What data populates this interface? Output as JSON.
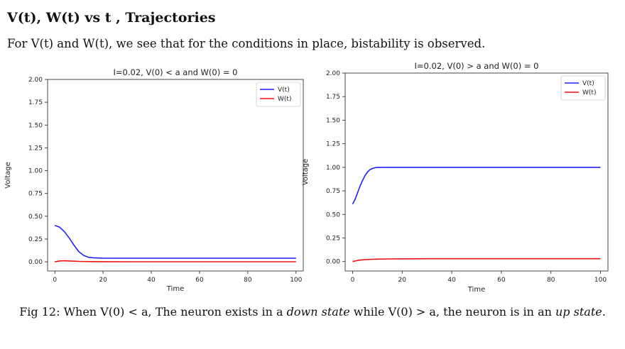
{
  "page": {
    "heading": "V(t), W(t) vs t , Trajectories",
    "intro": "For V(t) and W(t), we see that for the conditions in place, bistability is observed.",
    "caption": {
      "part1": "Fig 12: When V(0) <  a, The neuron exists in a ",
      "em1": "down state",
      "part2": " while V(0) > a, the neuron is in an ",
      "em2": "up state."
    }
  },
  "chart_data": [
    {
      "type": "line",
      "title": "I=0.02, V(0) < a and W(0) = 0",
      "xlabel": "Time",
      "ylabel": "Voltage",
      "xlim": [
        -3,
        103
      ],
      "ylim": [
        -0.1,
        2.0
      ],
      "xticks": [
        0,
        20,
        40,
        60,
        80,
        100
      ],
      "yticks": [
        "0.00",
        "0.25",
        "0.50",
        "0.75",
        "1.00",
        "1.25",
        "1.50",
        "1.75",
        "2.00"
      ],
      "grid": false,
      "legend": "top-right",
      "series": [
        {
          "name": "V(t)",
          "color": "#1f1fff",
          "x": [
            0,
            2,
            4,
            6,
            8,
            10,
            12,
            14,
            16,
            18,
            20,
            25,
            30,
            40,
            50,
            60,
            70,
            80,
            90,
            100
          ],
          "y": [
            0.4,
            0.38,
            0.33,
            0.26,
            0.18,
            0.11,
            0.07,
            0.05,
            0.045,
            0.042,
            0.041,
            0.04,
            0.04,
            0.04,
            0.04,
            0.04,
            0.04,
            0.04,
            0.04,
            0.04
          ]
        },
        {
          "name": "W(t)",
          "color": "#ee1111",
          "x": [
            0,
            2,
            4,
            6,
            8,
            10,
            15,
            20,
            30,
            40,
            60,
            80,
            100
          ],
          "y": [
            0.0,
            0.01,
            0.012,
            0.01,
            0.007,
            0.005,
            0.003,
            0.002,
            0.001,
            0.001,
            0.001,
            0.001,
            0.001
          ]
        }
      ]
    },
    {
      "type": "line",
      "title": "I=0.02, V(0) > a and W(0) = 0",
      "xlabel": "Time",
      "ylabel": "Voltage",
      "xlim": [
        -3,
        103
      ],
      "ylim": [
        -0.1,
        2.0
      ],
      "xticks": [
        0,
        20,
        40,
        60,
        80,
        100
      ],
      "yticks": [
        "0.00",
        "0.25",
        "0.50",
        "0.75",
        "1.00",
        "1.25",
        "1.50",
        "1.75",
        "2.00"
      ],
      "grid": false,
      "legend": "top-right",
      "series": [
        {
          "name": "V(t)",
          "color": "#1f1fff",
          "x": [
            0,
            1,
            2,
            3,
            4,
            5,
            6,
            7,
            8,
            9,
            10,
            12,
            14,
            20,
            30,
            40,
            60,
            80,
            100
          ],
          "y": [
            0.61,
            0.66,
            0.73,
            0.8,
            0.86,
            0.91,
            0.95,
            0.975,
            0.988,
            0.995,
            0.998,
            1.0,
            1.0,
            1.0,
            1.0,
            1.0,
            1.0,
            1.0,
            1.0
          ]
        },
        {
          "name": "W(t)",
          "color": "#ee1111",
          "x": [
            0,
            2,
            4,
            6,
            8,
            10,
            15,
            20,
            30,
            40,
            60,
            80,
            100
          ],
          "y": [
            0.0,
            0.012,
            0.018,
            0.022,
            0.024,
            0.026,
            0.028,
            0.029,
            0.03,
            0.03,
            0.03,
            0.03,
            0.03
          ]
        }
      ]
    }
  ]
}
